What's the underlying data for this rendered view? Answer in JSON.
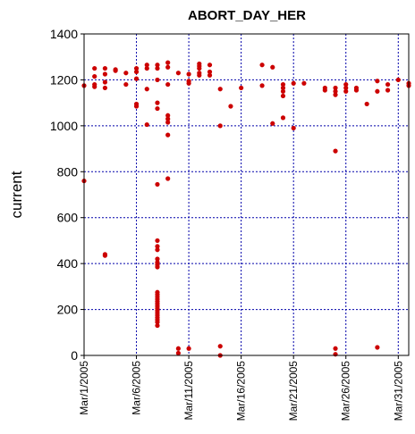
{
  "chart_data": {
    "type": "scatter",
    "title": "ABORT_DAY_HER",
    "xlabel": "",
    "ylabel": "current",
    "ylim": [
      0,
      1400
    ],
    "yticks": [
      0,
      200,
      400,
      600,
      800,
      1000,
      1200,
      1400
    ],
    "xlim": [
      "Mar/1/2005",
      "Apr/1/2005"
    ],
    "xticks": [
      "Mar/1/2005",
      "Mar/6/2005",
      "Mar/11/2005",
      "Mar/16/2005",
      "Mar/21/2005",
      "Mar/26/2005",
      "Mar/31/2005"
    ],
    "grid": true,
    "colors": {
      "points": "#cc0000",
      "grid": "#0000aa",
      "axes": "#000000"
    },
    "series": [
      {
        "points": [
          [
            "Mar/1/2005",
            1175
          ],
          [
            "Mar/1/2005",
            760
          ],
          [
            "Mar/2/2005",
            1250
          ],
          [
            "Mar/2/2005",
            1215
          ],
          [
            "Mar/2/2005",
            1180
          ],
          [
            "Mar/2/2005",
            1170
          ],
          [
            "Mar/3/2005",
            1250
          ],
          [
            "Mar/3/2005",
            1225
          ],
          [
            "Mar/3/2005",
            1190
          ],
          [
            "Mar/3/2005",
            1165
          ],
          [
            "Mar/3/2005",
            440
          ],
          [
            "Mar/3/2005",
            435
          ],
          [
            "Mar/4/2005",
            1245
          ],
          [
            "Mar/4/2005",
            1240
          ],
          [
            "Mar/5/2005",
            1230
          ],
          [
            "Mar/5/2005",
            1180
          ],
          [
            "Mar/6/2005",
            1250
          ],
          [
            "Mar/6/2005",
            1235
          ],
          [
            "Mar/6/2005",
            1205
          ],
          [
            "Mar/6/2005",
            1095
          ],
          [
            "Mar/6/2005",
            1085
          ],
          [
            "Mar/7/2005",
            1265
          ],
          [
            "Mar/7/2005",
            1250
          ],
          [
            "Mar/7/2005",
            1160
          ],
          [
            "Mar/7/2005",
            1005
          ],
          [
            "Mar/8/2005",
            1265
          ],
          [
            "Mar/8/2005",
            1250
          ],
          [
            "Mar/8/2005",
            1200
          ],
          [
            "Mar/8/2005",
            1100
          ],
          [
            "Mar/8/2005",
            1075
          ],
          [
            "Mar/8/2005",
            745
          ],
          [
            "Mar/8/2005",
            500
          ],
          [
            "Mar/8/2005",
            475
          ],
          [
            "Mar/8/2005",
            460
          ],
          [
            "Mar/8/2005",
            420
          ],
          [
            "Mar/8/2005",
            405
          ],
          [
            "Mar/8/2005",
            395
          ],
          [
            "Mar/8/2005",
            385
          ],
          [
            "Mar/8/2005",
            275
          ],
          [
            "Mar/8/2005",
            265
          ],
          [
            "Mar/8/2005",
            255
          ],
          [
            "Mar/8/2005",
            245
          ],
          [
            "Mar/8/2005",
            235
          ],
          [
            "Mar/8/2005",
            225
          ],
          [
            "Mar/8/2005",
            215
          ],
          [
            "Mar/8/2005",
            205
          ],
          [
            "Mar/8/2005",
            195
          ],
          [
            "Mar/8/2005",
            185
          ],
          [
            "Mar/8/2005",
            175
          ],
          [
            "Mar/8/2005",
            165
          ],
          [
            "Mar/8/2005",
            155
          ],
          [
            "Mar/8/2005",
            145
          ],
          [
            "Mar/8/2005",
            130
          ],
          [
            "Mar/9/2005",
            1275
          ],
          [
            "Mar/9/2005",
            1255
          ],
          [
            "Mar/9/2005",
            1180
          ],
          [
            "Mar/9/2005",
            1045
          ],
          [
            "Mar/9/2005",
            1030
          ],
          [
            "Mar/9/2005",
            1015
          ],
          [
            "Mar/9/2005",
            960
          ],
          [
            "Mar/9/2005",
            770
          ],
          [
            "Mar/10/2005",
            1230
          ],
          [
            "Mar/10/2005",
            30
          ],
          [
            "Mar/10/2005",
            10
          ],
          [
            "Mar/11/2005",
            1225
          ],
          [
            "Mar/11/2005",
            1195
          ],
          [
            "Mar/11/2005",
            1185
          ],
          [
            "Mar/11/2005",
            30
          ],
          [
            "Mar/12/2005",
            1270
          ],
          [
            "Mar/12/2005",
            1260
          ],
          [
            "Mar/12/2005",
            1250
          ],
          [
            "Mar/12/2005",
            1230
          ],
          [
            "Mar/12/2005",
            1220
          ],
          [
            "Mar/13/2005",
            1265
          ],
          [
            "Mar/13/2005",
            1235
          ],
          [
            "Mar/13/2005",
            1220
          ],
          [
            "Mar/14/2005",
            1160
          ],
          [
            "Mar/14/2005",
            1000
          ],
          [
            "Mar/14/2005",
            40
          ],
          [
            "Mar/14/2005",
            0
          ],
          [
            "Mar/15/2005",
            1085
          ],
          [
            "Mar/16/2005",
            1165
          ],
          [
            "Mar/18/2005",
            1265
          ],
          [
            "Mar/18/2005",
            1175
          ],
          [
            "Mar/19/2005",
            1255
          ],
          [
            "Mar/19/2005",
            1010
          ],
          [
            "Mar/20/2005",
            1180
          ],
          [
            "Mar/20/2005",
            1165
          ],
          [
            "Mar/20/2005",
            1150
          ],
          [
            "Mar/20/2005",
            1130
          ],
          [
            "Mar/20/2005",
            1035
          ],
          [
            "Mar/21/2005",
            1185
          ],
          [
            "Mar/21/2005",
            990
          ],
          [
            "Mar/22/2005",
            1185
          ],
          [
            "Mar/24/2005",
            1165
          ],
          [
            "Mar/24/2005",
            1155
          ],
          [
            "Mar/25/2005",
            1165
          ],
          [
            "Mar/25/2005",
            1150
          ],
          [
            "Mar/25/2005",
            1135
          ],
          [
            "Mar/25/2005",
            890
          ],
          [
            "Mar/25/2005",
            30
          ],
          [
            "Mar/25/2005",
            5
          ],
          [
            "Mar/26/2005",
            1180
          ],
          [
            "Mar/26/2005",
            1165
          ],
          [
            "Mar/26/2005",
            1150
          ],
          [
            "Mar/27/2005",
            1165
          ],
          [
            "Mar/27/2005",
            1155
          ],
          [
            "Mar/28/2005",
            1095
          ],
          [
            "Mar/29/2005",
            1195
          ],
          [
            "Mar/29/2005",
            1150
          ],
          [
            "Mar/29/2005",
            35
          ],
          [
            "Mar/30/2005",
            1180
          ],
          [
            "Mar/30/2005",
            1155
          ],
          [
            "Mar/31/2005",
            1200
          ],
          [
            "Apr/1/2005",
            1185
          ],
          [
            "Apr/1/2005",
            1175
          ]
        ]
      }
    ]
  }
}
